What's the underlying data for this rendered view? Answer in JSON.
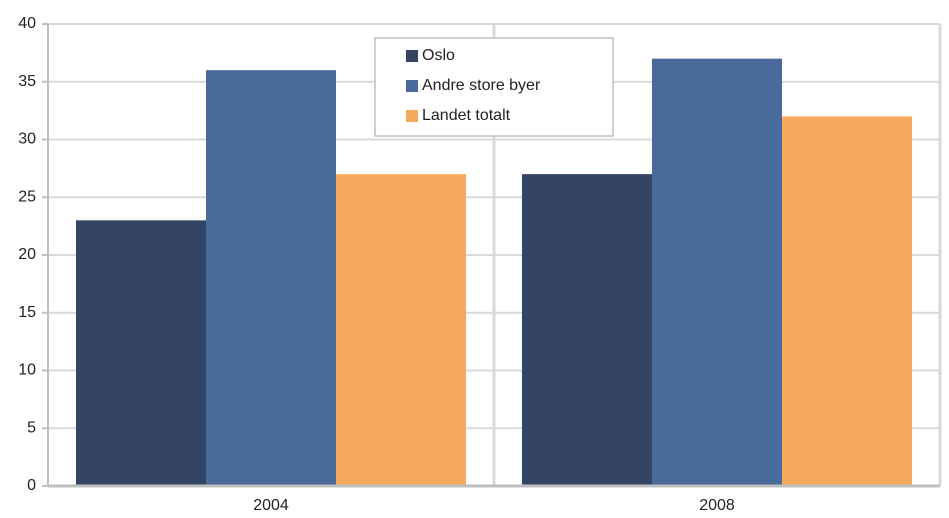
{
  "chart_data": {
    "type": "bar",
    "categories": [
      "2004",
      "2008"
    ],
    "series": [
      {
        "name": "Oslo",
        "color": "#344465",
        "values": [
          23,
          27
        ]
      },
      {
        "name": "Andre store byer",
        "color": "#4a6a9c",
        "values": [
          36,
          37
        ]
      },
      {
        "name": "Landet totalt",
        "color": "#f5a95c",
        "values": [
          27,
          32
        ]
      }
    ],
    "ylim": [
      0,
      40
    ],
    "yticks": [
      0,
      5,
      10,
      15,
      20,
      25,
      30,
      35,
      40
    ],
    "grid": true,
    "legend": "top"
  }
}
